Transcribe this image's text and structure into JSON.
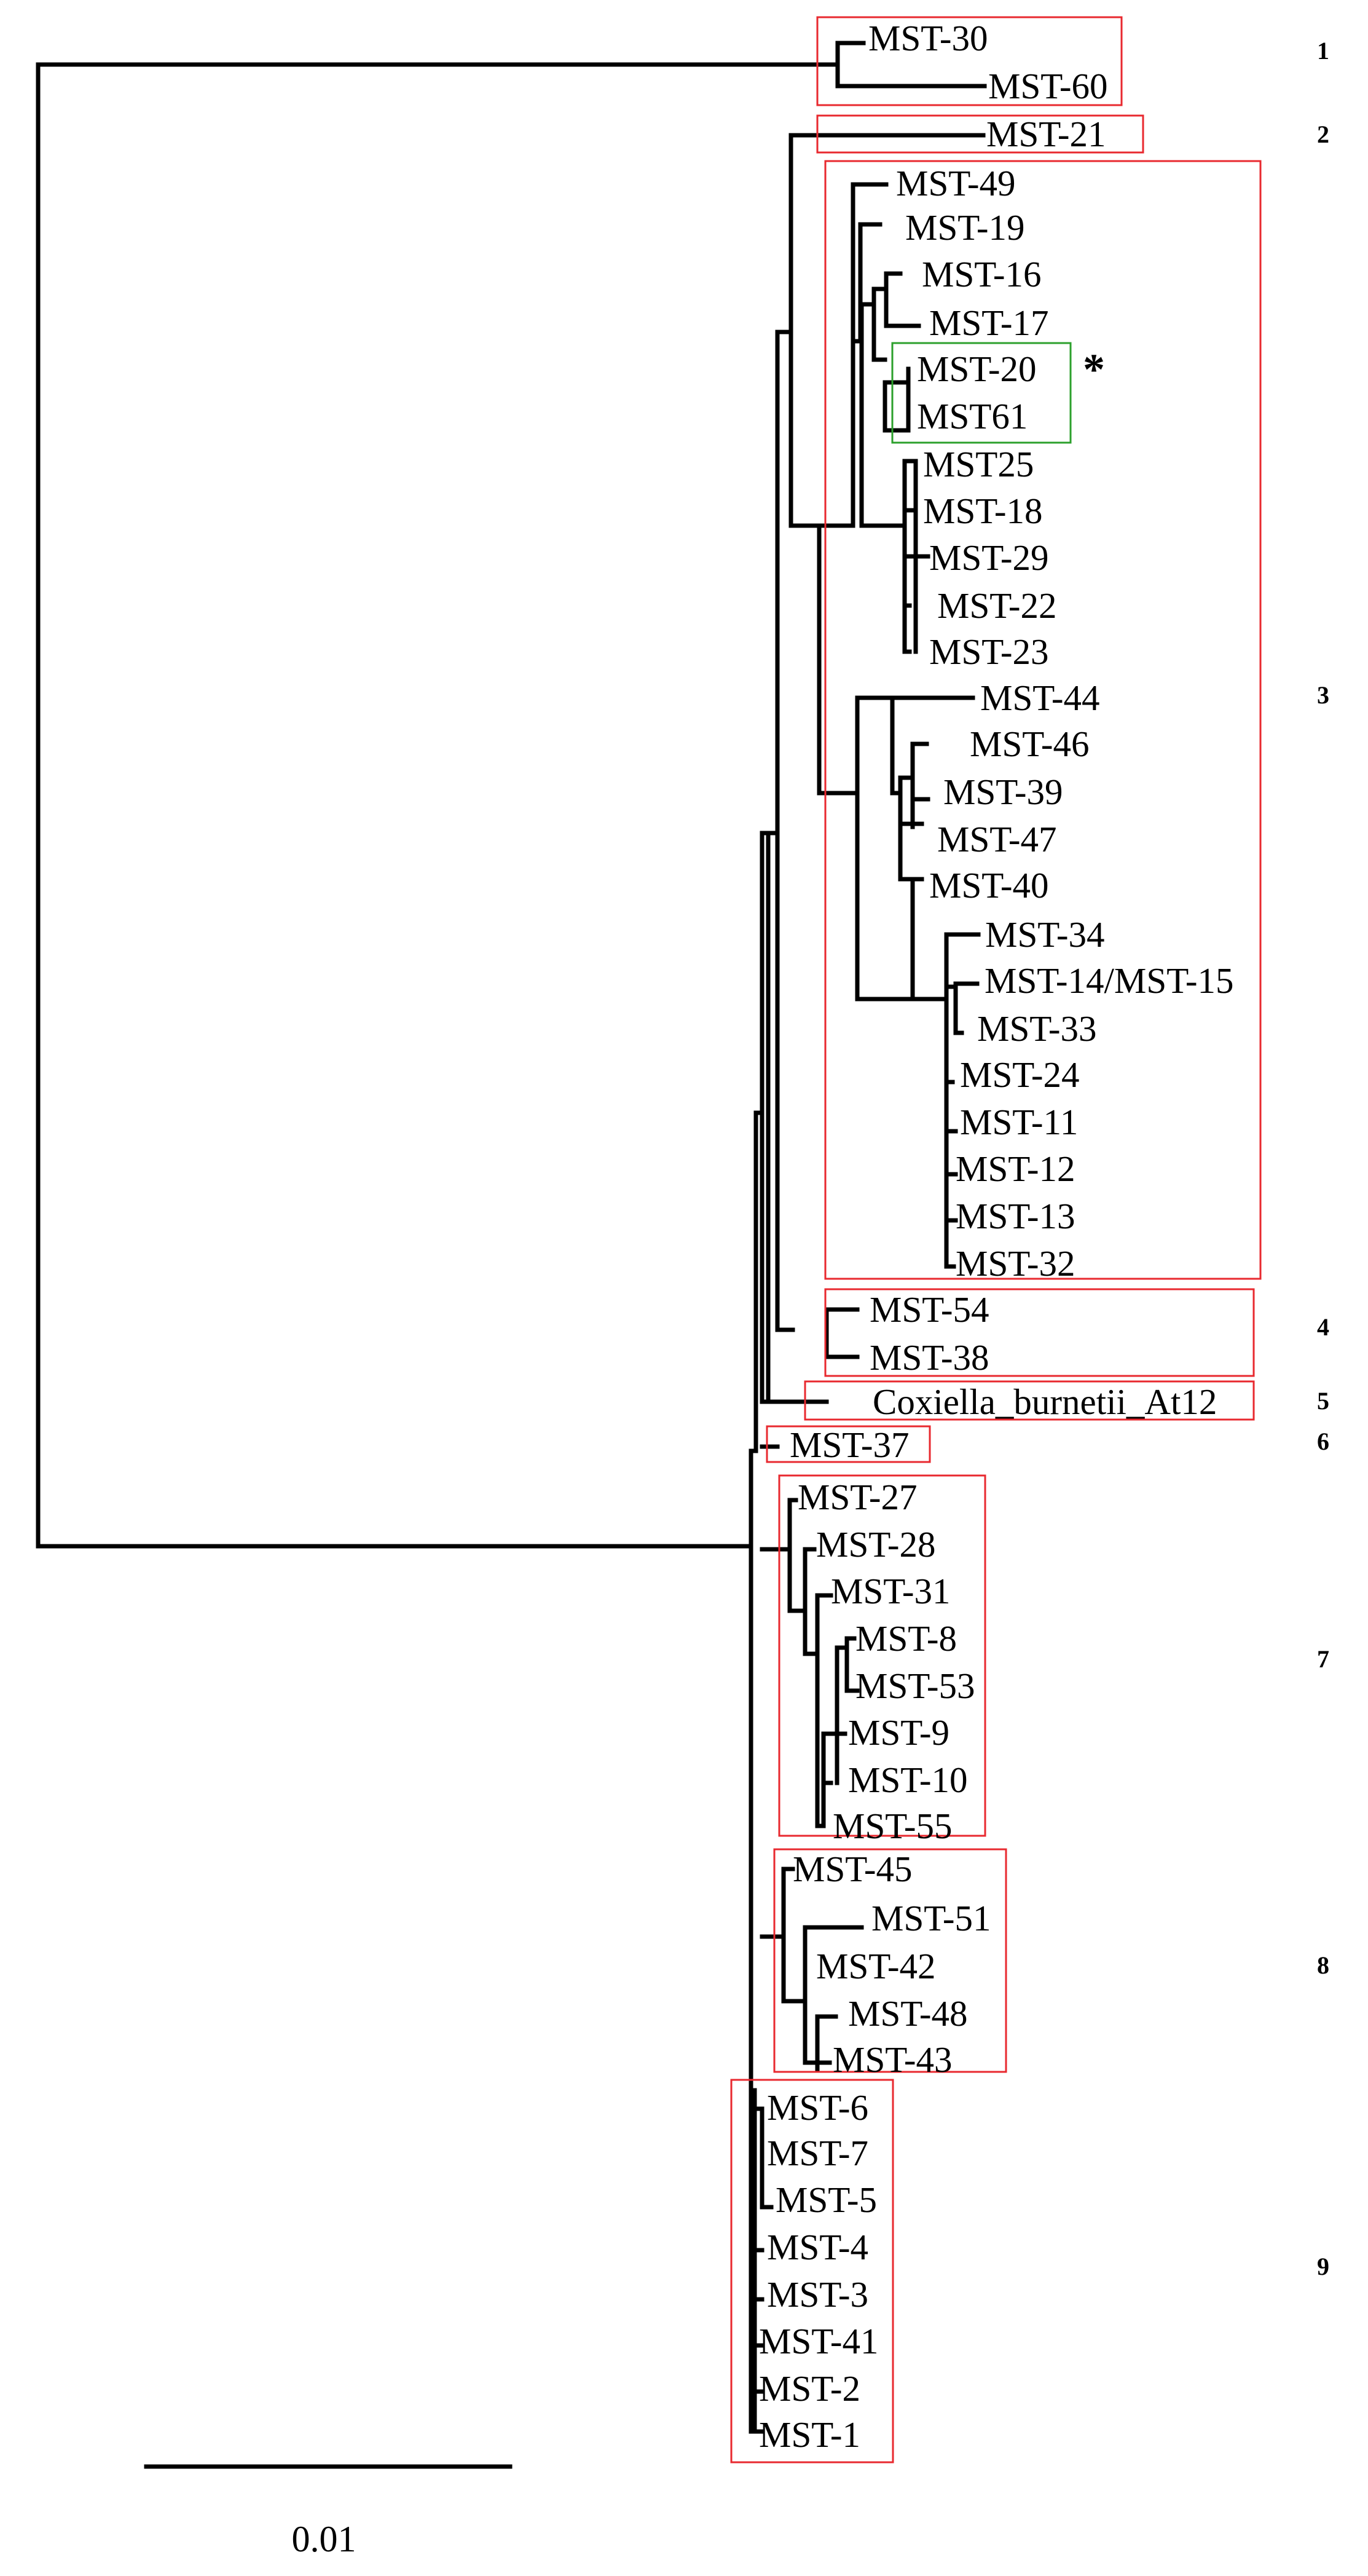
{
  "tip_labels": {
    "mst30": "MST-30",
    "mst60": "MST-60",
    "mst21": "MST-21",
    "mst49": "MST-49",
    "mst19": "MST-19",
    "mst16": "MST-16",
    "mst17": "MST-17",
    "mst20": "MST-20",
    "mst61": "MST61",
    "mst25": "MST25",
    "mst18": "MST-18",
    "mst29": "MST-29",
    "mst22": "MST-22",
    "mst23": "MST-23",
    "mst44": "MST-44",
    "mst46": "MST-46",
    "mst39": "MST-39",
    "mst47": "MST-47",
    "mst40": "MST-40",
    "mst34": "MST-34",
    "mst14_15": "MST-14/MST-15",
    "mst33": "MST-33",
    "mst24": "MST-24",
    "mst11": "MST-11",
    "mst12": "MST-12",
    "mst13": "MST-13",
    "mst32": "MST-32",
    "mst54": "MST-54",
    "mst38": "MST-38",
    "coxiella": "Coxiella_burnetii_At12",
    "mst37": "MST-37",
    "mst27": "MST-27",
    "mst28": "MST-28",
    "mst31": "MST-31",
    "mst8": "MST-8",
    "mst53": "MST-53",
    "mst9": "MST-9",
    "mst10": "MST-10",
    "mst55": "MST-55",
    "mst45": "MST-45",
    "mst51": "MST-51",
    "mst42": "MST-42",
    "mst48": "MST-48",
    "mst43": "MST-43",
    "mst6": "MST-6",
    "mst7": "MST-7",
    "mst5": "MST-5",
    "mst4": "MST-4",
    "mst3": "MST-3",
    "mst41": "MST-41",
    "mst2": "MST-2",
    "mst1": "MST-1"
  },
  "clusters": [
    "1",
    "2",
    "3",
    "4",
    "5",
    "6",
    "7",
    "8",
    "9"
  ],
  "highlight_marker": "*",
  "scale_bar_label": "0.01",
  "colors": {
    "branch": "#000000",
    "cluster_box": "#e8292f",
    "highlight_box": "#2ca02c"
  }
}
